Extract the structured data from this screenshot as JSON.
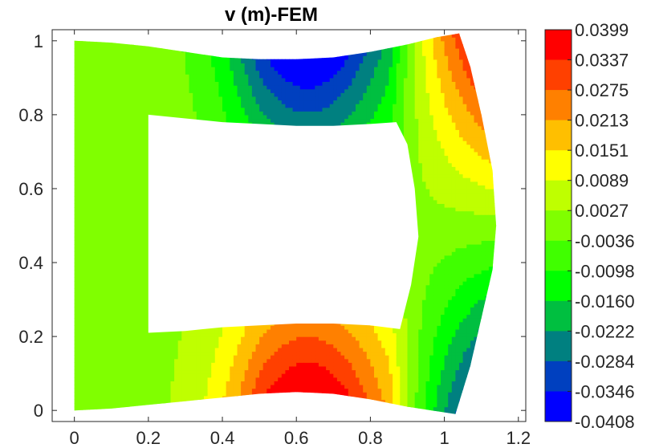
{
  "chart_data": {
    "type": "heatmap",
    "title": "v (m)-FEM",
    "xlabel": "",
    "ylabel": "",
    "xlim": [
      -0.06,
      1.22
    ],
    "ylim": [
      -0.03,
      1.03
    ],
    "xticks": [
      {
        "value": 0,
        "label": "0"
      },
      {
        "value": 0.2,
        "label": "0.2"
      },
      {
        "value": 0.4,
        "label": "0.4"
      },
      {
        "value": 0.6,
        "label": "0.6"
      },
      {
        "value": 0.8,
        "label": "0.8"
      },
      {
        "value": 1,
        "label": "1"
      },
      {
        "value": 1.2,
        "label": "1.2"
      }
    ],
    "yticks": [
      {
        "value": 0,
        "label": "0"
      },
      {
        "value": 0.2,
        "label": "0.2"
      },
      {
        "value": 0.4,
        "label": "0.4"
      },
      {
        "value": 0.6,
        "label": "0.6"
      },
      {
        "value": 0.8,
        "label": "0.8"
      },
      {
        "value": 1,
        "label": "1"
      }
    ],
    "colorbar": {
      "levels": [
        "0.0399",
        "0.0337",
        "0.0275",
        "0.0213",
        "0.0151",
        "0.0089",
        "0.0027",
        "-0.0036",
        "-0.0098",
        "-0.0160",
        "-0.0222",
        "-0.0284",
        "-0.0346",
        "-0.0408"
      ],
      "colors": [
        "#ff0000",
        "#ff4000",
        "#ff8000",
        "#ffbf00",
        "#ffff00",
        "#bfff00",
        "#80ff00",
        "#40ff00",
        "#00ff00",
        "#00bf40",
        "#008080",
        "#0040bf",
        "#0000ff"
      ]
    },
    "domain": {
      "outer": [
        [
          0,
          1.0
        ],
        [
          0.1,
          0.995
        ],
        [
          0.2,
          0.985
        ],
        [
          0.3,
          0.97
        ],
        [
          0.4,
          0.955
        ],
        [
          0.5,
          0.95
        ],
        [
          0.6,
          0.95
        ],
        [
          0.7,
          0.955
        ],
        [
          0.8,
          0.97
        ],
        [
          0.9,
          0.99
        ],
        [
          0.98,
          1.01
        ],
        [
          1.04,
          1.02
        ],
        [
          1.07,
          0.93
        ],
        [
          1.1,
          0.8
        ],
        [
          1.13,
          0.65
        ],
        [
          1.14,
          0.5
        ],
        [
          1.13,
          0.38
        ],
        [
          1.1,
          0.25
        ],
        [
          1.07,
          0.12
        ],
        [
          1.03,
          -0.01
        ],
        [
          0.9,
          0.01
        ],
        [
          0.8,
          0.03
        ],
        [
          0.7,
          0.045
        ],
        [
          0.6,
          0.05
        ],
        [
          0.5,
          0.045
        ],
        [
          0.4,
          0.035
        ],
        [
          0.3,
          0.025
        ],
        [
          0.2,
          0.015
        ],
        [
          0.1,
          0.005
        ],
        [
          0,
          0.0
        ]
      ],
      "hole": [
        [
          0.2,
          0.8
        ],
        [
          0.3,
          0.79
        ],
        [
          0.4,
          0.78
        ],
        [
          0.5,
          0.775
        ],
        [
          0.6,
          0.77
        ],
        [
          0.7,
          0.77
        ],
        [
          0.8,
          0.775
        ],
        [
          0.87,
          0.78
        ],
        [
          0.9,
          0.72
        ],
        [
          0.92,
          0.6
        ],
        [
          0.93,
          0.47
        ],
        [
          0.91,
          0.34
        ],
        [
          0.88,
          0.22
        ],
        [
          0.8,
          0.23
        ],
        [
          0.7,
          0.235
        ],
        [
          0.6,
          0.235
        ],
        [
          0.5,
          0.23
        ],
        [
          0.4,
          0.225
        ],
        [
          0.3,
          0.215
        ],
        [
          0.2,
          0.21
        ],
        [
          0.2,
          0.5
        ]
      ]
    },
    "field": {
      "description_free": true,
      "top_center": [
        0.63,
        0.88
      ],
      "top_value": -0.0408,
      "bottom_center": [
        0.63,
        0.12
      ],
      "bottom_value": 0.0399,
      "left_value": 0.0027,
      "right_top_value": 0.0399,
      "right_bottom_value": -0.0408
    },
    "grid": false
  }
}
